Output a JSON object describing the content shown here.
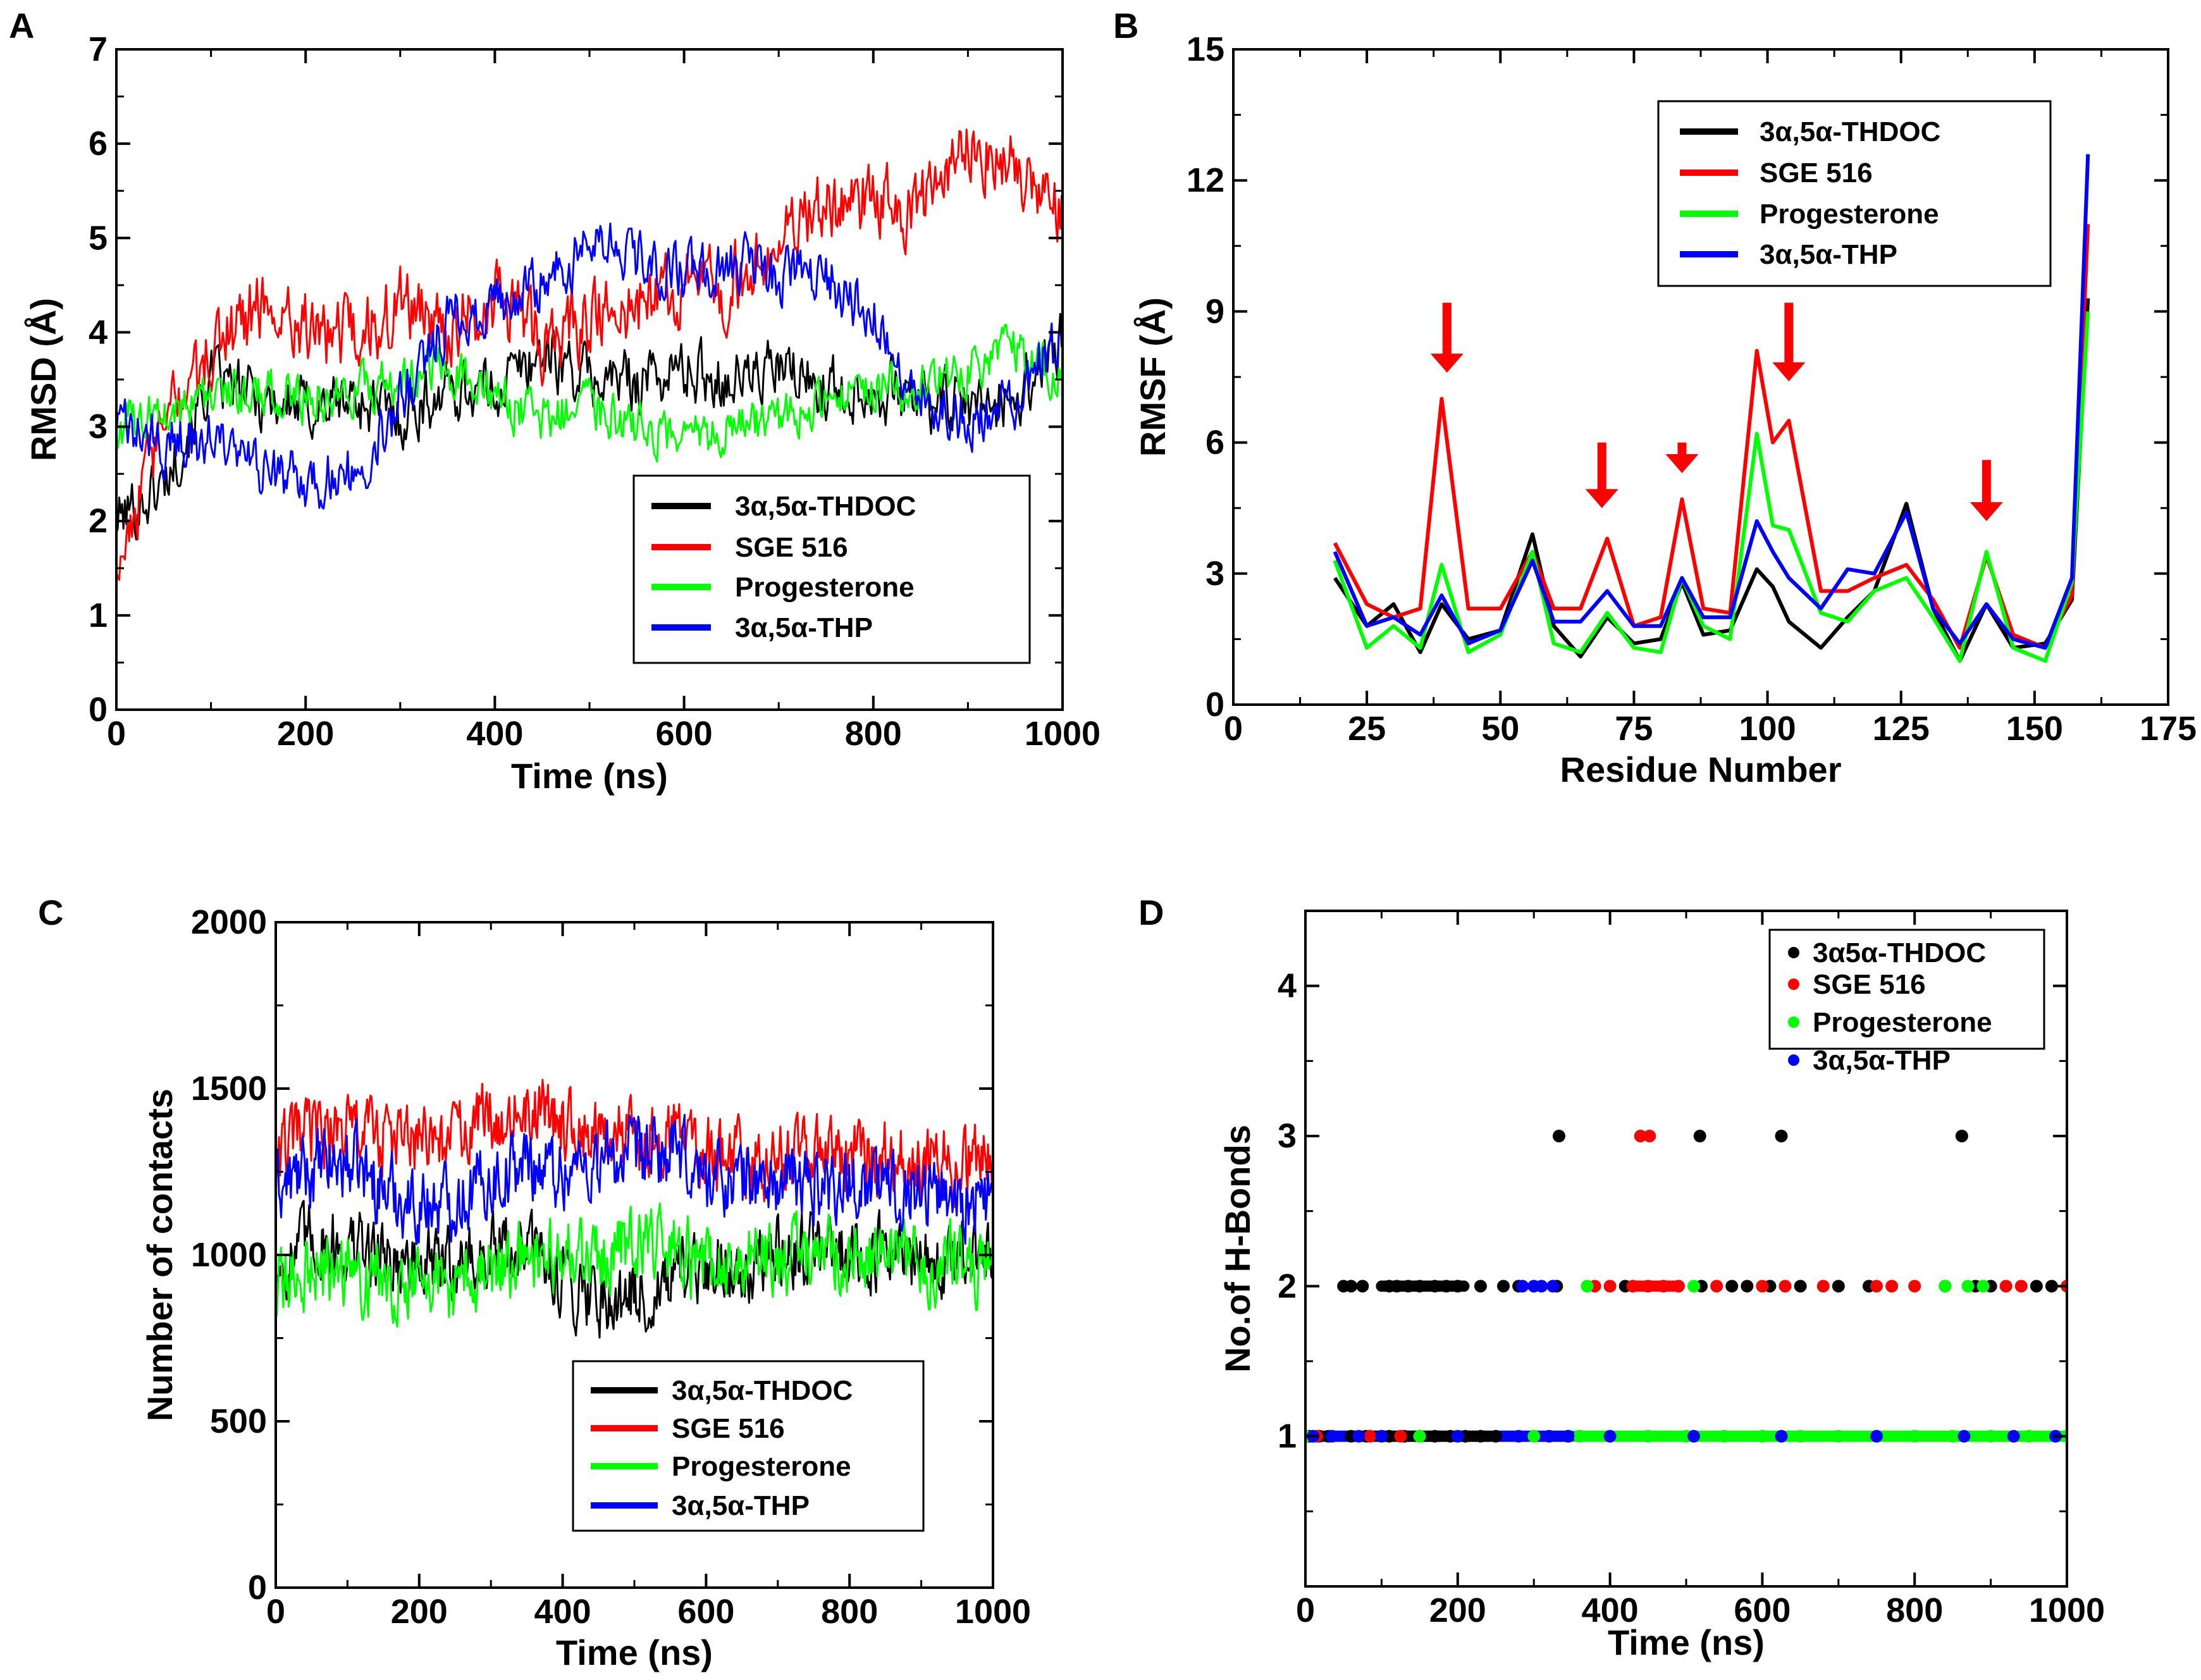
{
  "chart_data": [
    {
      "panel": "A",
      "type": "line",
      "title": "",
      "xlabel": "Time (ns)",
      "ylabel": "RMSD (Å)",
      "xlim": [
        0,
        1000
      ],
      "ylim": [
        0,
        7
      ],
      "xticks": [
        "0",
        "200",
        "400",
        "600",
        "800",
        "1000"
      ],
      "yticks": [
        "0",
        "1",
        "2",
        "3",
        "4",
        "5",
        "6",
        "7"
      ],
      "legend_position": "lower-right",
      "x": [
        0,
        50,
        100,
        150,
        200,
        250,
        300,
        350,
        400,
        450,
        500,
        550,
        600,
        650,
        700,
        750,
        800,
        850,
        900,
        950,
        1000
      ],
      "series": [
        {
          "name": "3α,5α-THDOC",
          "color": "#000000",
          "values": [
            2.0,
            2.4,
            3.5,
            3.3,
            3.2,
            3.3,
            3.1,
            3.4,
            3.4,
            3.8,
            3.5,
            3.5,
            3.6,
            3.5,
            3.6,
            3.4,
            3.4,
            3.3,
            3.2,
            3.3,
            3.9
          ]
        },
        {
          "name": "SGE 516",
          "color": "#ff0000",
          "values": [
            1.6,
            3.0,
            3.8,
            4.3,
            4.1,
            3.9,
            4.3,
            4.0,
            4.4,
            3.9,
            4.1,
            4.3,
            4.5,
            4.5,
            5.0,
            5.3,
            5.4,
            5.3,
            6.0,
            5.7,
            5.2
          ]
        },
        {
          "name": "Progesterone",
          "color": "#00ff00",
          "values": [
            3.0,
            3.2,
            3.3,
            3.4,
            3.3,
            3.4,
            3.5,
            3.6,
            3.3,
            3.1,
            3.2,
            3.0,
            2.8,
            3.0,
            3.1,
            3.2,
            3.4,
            3.4,
            3.6,
            3.8,
            3.5
          ]
        },
        {
          "name": "3α,5α-THP",
          "color": "#0000ff",
          "values": [
            3.0,
            2.8,
            2.9,
            2.5,
            2.4,
            2.5,
            3.3,
            4.1,
            4.3,
            4.5,
            4.9,
            4.8,
            4.6,
            4.7,
            4.6,
            4.6,
            4.2,
            3.3,
            3.1,
            3.3,
            3.9
          ]
        }
      ]
    },
    {
      "panel": "B",
      "type": "line",
      "title": "",
      "xlabel": "Residue Number",
      "ylabel": "RMSF (Å)",
      "xlim": [
        0,
        175
      ],
      "ylim": [
        0,
        15
      ],
      "xticks": [
        "0",
        "25",
        "50",
        "75",
        "100",
        "125",
        "150",
        "175"
      ],
      "yticks": [
        "0",
        "3",
        "6",
        "9",
        "12",
        "15"
      ],
      "legend_position": "top-center",
      "x": [
        19,
        25,
        30,
        35,
        39,
        44,
        50,
        56,
        60,
        65,
        70,
        75,
        80,
        84,
        88,
        93,
        98,
        101,
        104,
        110,
        115,
        120,
        126,
        131,
        136,
        141,
        146,
        152,
        157,
        160
      ],
      "series": [
        {
          "name": "3α,5α-THDOC",
          "color": "#000000",
          "values": [
            2.9,
            1.8,
            2.3,
            1.2,
            2.3,
            1.5,
            1.7,
            3.9,
            1.8,
            1.1,
            2.0,
            1.4,
            1.5,
            2.8,
            1.6,
            1.7,
            3.1,
            2.7,
            1.9,
            1.3,
            2.0,
            2.6,
            4.6,
            2.2,
            1.0,
            2.3,
            1.3,
            1.4,
            2.4,
            9.3
          ]
        },
        {
          "name": "SGE 516",
          "color": "#ff0000",
          "values": [
            3.7,
            2.3,
            2.0,
            2.2,
            7.0,
            2.2,
            2.2,
            3.5,
            2.2,
            2.2,
            3.8,
            1.8,
            2.0,
            4.7,
            2.2,
            2.1,
            8.1,
            6.0,
            6.5,
            2.6,
            2.6,
            2.9,
            3.2,
            2.4,
            1.3,
            3.4,
            1.6,
            1.3,
            2.5,
            11.0
          ]
        },
        {
          "name": "Progesterone",
          "color": "#00ff00",
          "values": [
            3.3,
            1.3,
            1.8,
            1.3,
            3.2,
            1.2,
            1.6,
            3.5,
            1.4,
            1.2,
            2.1,
            1.3,
            1.2,
            2.9,
            1.8,
            1.5,
            6.2,
            4.1,
            4.0,
            2.1,
            1.9,
            2.6,
            2.9,
            2.0,
            1.0,
            3.5,
            1.3,
            1.0,
            2.8,
            9.0
          ]
        },
        {
          "name": "3α,5α-THP",
          "color": "#0000ff",
          "values": [
            3.5,
            1.8,
            2.0,
            1.6,
            2.5,
            1.4,
            1.7,
            3.3,
            1.9,
            1.9,
            2.6,
            1.8,
            1.8,
            2.9,
            2.0,
            2.0,
            4.2,
            3.5,
            2.9,
            2.2,
            3.1,
            3.0,
            4.4,
            2.2,
            1.4,
            2.3,
            1.5,
            1.3,
            2.9,
            12.6
          ]
        }
      ],
      "annotations": [
        {
          "type": "arrow",
          "color": "#ff0000",
          "x": 40,
          "y_from": 9.2,
          "y_to": 7.6
        },
        {
          "type": "arrow",
          "color": "#ff0000",
          "x": 69,
          "y_from": 6.0,
          "y_to": 4.5
        },
        {
          "type": "arrow",
          "color": "#ff0000",
          "x": 84,
          "y_from": 6.0,
          "y_to": 5.3
        },
        {
          "type": "arrow",
          "color": "#ff0000",
          "x": 104,
          "y_from": 9.2,
          "y_to": 7.4
        },
        {
          "type": "arrow",
          "color": "#ff0000",
          "x": 141,
          "y_from": 5.6,
          "y_to": 4.2
        }
      ]
    },
    {
      "panel": "C",
      "type": "line",
      "title": "",
      "xlabel": "Time (ns)",
      "ylabel": "Number of contacts",
      "xlim": [
        0,
        1000
      ],
      "ylim": [
        0,
        2000
      ],
      "xticks": [
        "0",
        "200",
        "400",
        "600",
        "800",
        "1000"
      ],
      "yticks": [
        "0",
        "500",
        "1000",
        "1500",
        "2000"
      ],
      "legend_position": "lower-right",
      "x": [
        0,
        50,
        100,
        150,
        200,
        250,
        300,
        350,
        400,
        450,
        500,
        550,
        600,
        650,
        700,
        750,
        800,
        850,
        900,
        950,
        1000
      ],
      "series": [
        {
          "name": "3α,5α-THDOC",
          "color": "#000000",
          "values": [
            950,
            1050,
            1020,
            1000,
            960,
            980,
            1000,
            1020,
            930,
            880,
            870,
            900,
            950,
            980,
            1000,
            1020,
            1000,
            1000,
            980,
            970,
            1000
          ]
        },
        {
          "name": "SGE 516",
          "color": "#ff0000",
          "values": [
            1300,
            1370,
            1380,
            1360,
            1330,
            1350,
            1420,
            1430,
            1400,
            1360,
            1330,
            1380,
            1300,
            1280,
            1300,
            1290,
            1310,
            1300,
            1290,
            1280,
            1280
          ]
        },
        {
          "name": "Progesterone",
          "color": "#00ff00",
          "values": [
            900,
            960,
            950,
            940,
            920,
            900,
            940,
            1000,
            980,
            1000,
            1040,
            1030,
            960,
            980,
            1000,
            990,
            990,
            1000,
            980,
            970,
            950
          ]
        },
        {
          "name": "3α,5α-THP",
          "color": "#0000ff",
          "values": [
            1200,
            1250,
            1280,
            1200,
            1150,
            1170,
            1230,
            1280,
            1250,
            1280,
            1290,
            1300,
            1240,
            1230,
            1210,
            1220,
            1220,
            1210,
            1200,
            1180,
            1150
          ]
        }
      ]
    },
    {
      "panel": "D",
      "type": "scatter",
      "title": "",
      "xlabel": "Time (ns)",
      "ylabel": "No.of H-Bonds",
      "xlim": [
        0,
        1000
      ],
      "ylim": [
        0,
        4.5
      ],
      "xticks": [
        "0",
        "200",
        "400",
        "600",
        "800",
        "1000"
      ],
      "yticks": [
        "1",
        "2",
        "3",
        "4"
      ],
      "legend_position": "top-right",
      "series": [
        {
          "name": "3α5α-THDOC",
          "color": "#000000",
          "points": [
            [
              5,
              1
            ],
            [
              18,
              1
            ],
            [
              30,
              1
            ],
            [
              60,
              1
            ],
            [
              80,
              1
            ],
            [
              110,
              1
            ],
            [
              130,
              1
            ],
            [
              150,
              1
            ],
            [
              170,
              1
            ],
            [
              190,
              1
            ],
            [
              210,
              1
            ],
            [
              230,
              1
            ],
            [
              250,
              1
            ],
            [
              50,
              2
            ],
            [
              60,
              2
            ],
            [
              75,
              2
            ],
            [
              110,
              2
            ],
            [
              120,
              2
            ],
            [
              135,
              2
            ],
            [
              150,
              2
            ],
            [
              170,
              2
            ],
            [
              185,
              2
            ],
            [
              200,
              2
            ],
            [
              230,
              2
            ],
            [
              260,
              2
            ],
            [
              280,
              2
            ],
            [
              330,
              2
            ],
            [
              420,
              2
            ],
            [
              520,
              2
            ],
            [
              560,
              2
            ],
            [
              580,
              2
            ],
            [
              610,
              2
            ],
            [
              650,
              2
            ],
            [
              700,
              2
            ],
            [
              740,
              2
            ],
            [
              840,
              2
            ],
            [
              880,
              2
            ],
            [
              900,
              2
            ],
            [
              960,
              2
            ],
            [
              980,
              2
            ],
            [
              333,
              3
            ],
            [
              518,
              3
            ],
            [
              625,
              3
            ],
            [
              862,
              3
            ]
          ]
        },
        {
          "name": "SGE 516",
          "color": "#ff0000",
          "points": [
            [
              15,
              1
            ],
            [
              85,
              1
            ],
            [
              125,
              1
            ],
            [
              345,
              1
            ],
            [
              380,
              2
            ],
            [
              400,
              2
            ],
            [
              430,
              2
            ],
            [
              450,
              2
            ],
            [
              470,
              2
            ],
            [
              490,
              2
            ],
            [
              540,
              2
            ],
            [
              600,
              2
            ],
            [
              630,
              2
            ],
            [
              680,
              2
            ],
            [
              750,
              2
            ],
            [
              770,
              2
            ],
            [
              800,
              2
            ],
            [
              920,
              2
            ],
            [
              940,
              2
            ],
            [
              1000,
              2
            ],
            [
              440,
              3
            ],
            [
              452,
              3
            ]
          ]
        },
        {
          "name": "Progesterone",
          "color": "#00ff00",
          "points": [
            [
              0,
              1
            ],
            [
              150,
              1
            ],
            [
              300,
              1
            ],
            [
              360,
              1
            ],
            [
              400,
              1
            ],
            [
              450,
              1
            ],
            [
              500,
              1
            ],
            [
              550,
              1
            ],
            [
              600,
              1
            ],
            [
              650,
              1
            ],
            [
              700,
              1
            ],
            [
              750,
              1
            ],
            [
              800,
              1
            ],
            [
              850,
              1
            ],
            [
              900,
              1
            ],
            [
              950,
              1
            ],
            [
              1000,
              1
            ],
            [
              370,
              2
            ],
            [
              510,
              2
            ],
            [
              840,
              2
            ],
            [
              870,
              2
            ],
            [
              890,
              2
            ]
          ]
        },
        {
          "name": "3α,5α-THP",
          "color": "#0000ff",
          "points": [
            [
              10,
              1
            ],
            [
              35,
              1
            ],
            [
              70,
              1
            ],
            [
              100,
              1
            ],
            [
              200,
              1
            ],
            [
              280,
              1
            ],
            [
              320,
              1
            ],
            [
              345,
              1
            ],
            [
              400,
              1
            ],
            [
              510,
              1
            ],
            [
              625,
              1
            ],
            [
              750,
              1
            ],
            [
              865,
              1
            ],
            [
              930,
              1
            ],
            [
              985,
              1
            ],
            [
              285,
              2
            ],
            [
              300,
              2
            ],
            [
              310,
              2
            ],
            [
              325,
              2
            ]
          ]
        }
      ],
      "bands": [
        {
          "name": "Progesterone",
          "color": "#00ff00",
          "y": 1,
          "x_from": 0,
          "x_to": 1000
        },
        {
          "name": "3α,5α-THP",
          "color": "#0000ff",
          "y": 1,
          "x_from": 0,
          "x_to": 350
        },
        {
          "name": "3α5α-THDOC",
          "color": "#000000",
          "y": 1,
          "x_from": 60,
          "x_to": 240
        },
        {
          "name": "SGE 516",
          "color": "#ff0000",
          "y": 2,
          "x_from": 430,
          "x_to": 490
        },
        {
          "name": "3α5α-THDOC",
          "color": "#000000",
          "y": 2,
          "x_from": 100,
          "x_to": 210
        }
      ]
    }
  ]
}
